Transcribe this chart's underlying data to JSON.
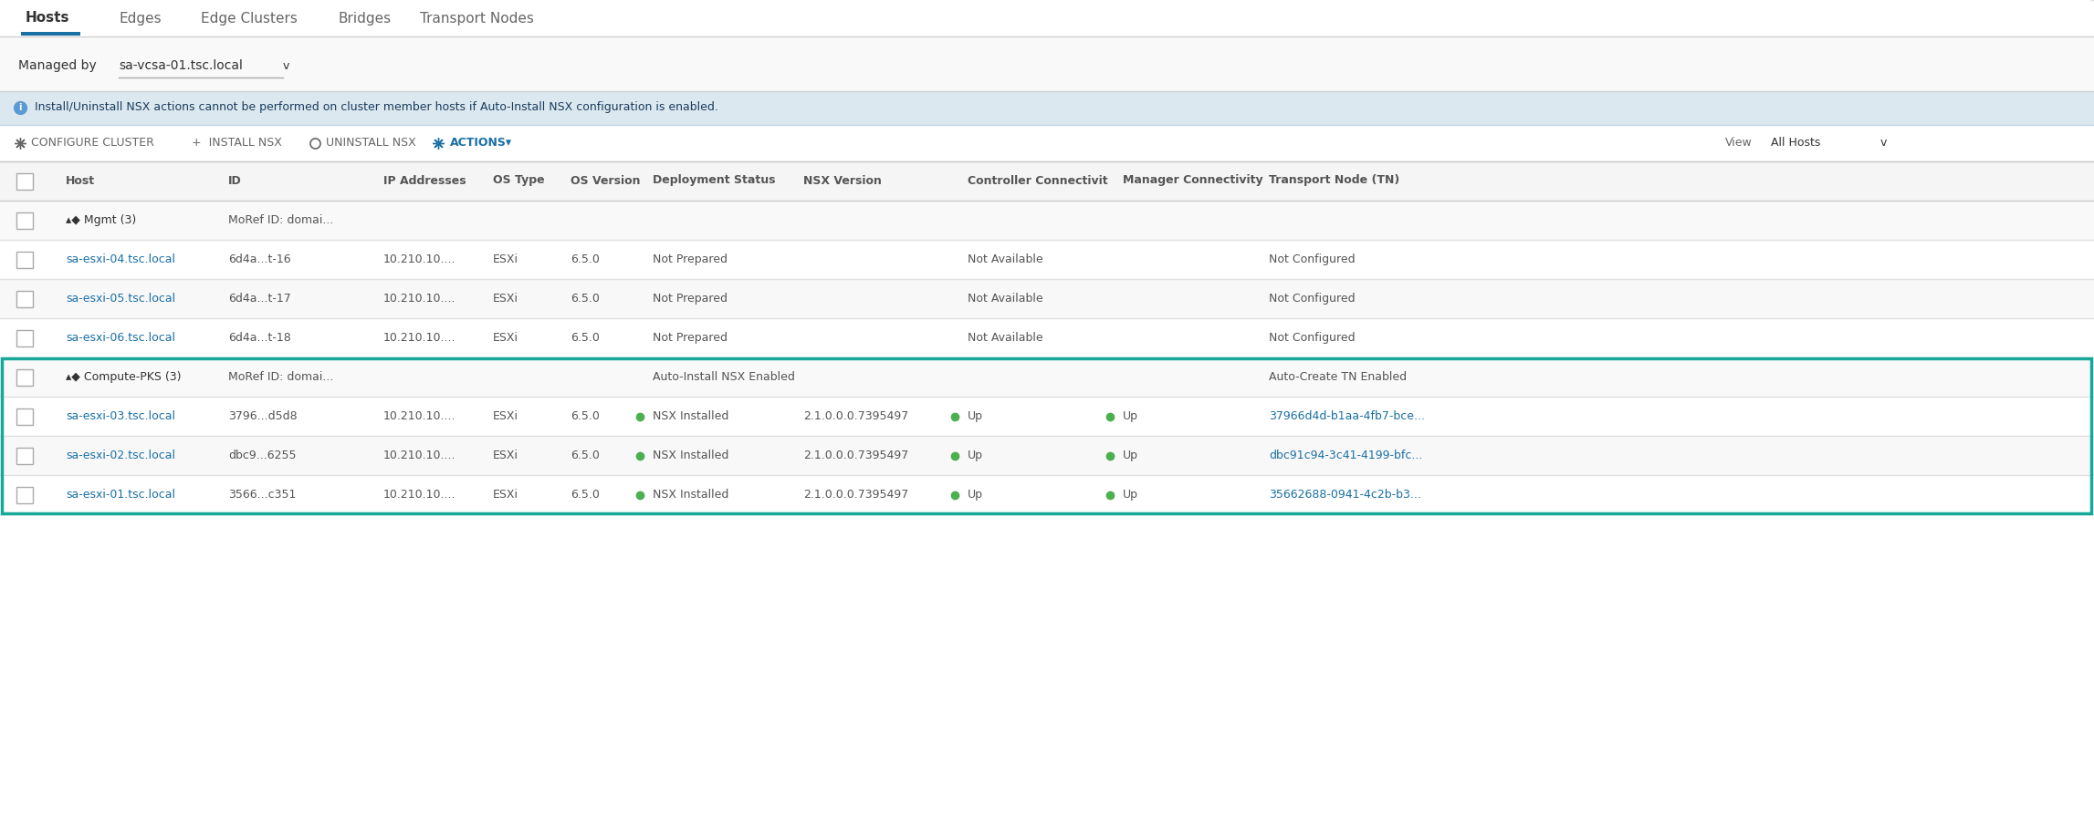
{
  "bg_color": "#ffffff",
  "tabs": [
    "Hosts",
    "Edges",
    "Edge Clusters",
    "Bridges",
    "Transport Nodes"
  ],
  "active_tab": "Hosts",
  "active_tab_color": "#1a6fa5",
  "managed_by_label": "Managed by",
  "managed_by_value": "sa-vcsa-01.tsc.local",
  "info_banner_bg": "#dce8f0",
  "info_banner_text": "Install/Uninstall NSX actions cannot be performed on cluster member hosts if Auto-Install NSX configuration is enabled.",
  "columns": [
    "Host",
    "ID",
    "IP Addresses",
    "OS Type",
    "OS Version",
    "Deployment Status",
    "NSX Version",
    "Controller Connectivit",
    "Manager Connectivity",
    "Transport Node (TN)"
  ],
  "header_bg": "#f5f5f5",
  "header_text_color": "#555555",
  "row_divider_color": "#e0e0e0",
  "mgmt_group_label": "▴◆ Mgmt (3)",
  "mgmt_group_id": "MoRef ID: domai...",
  "mgmt_rows": [
    {
      "host": "sa-esxi-04.tsc.local",
      "id": "6d4a...t-16",
      "ip": "10.210.10....",
      "os_type": "ESXi",
      "os_version": "6.5.0",
      "dep_status": "Not Prepared",
      "nsx_ver": "",
      "ctrl": "Not Available",
      "mgr": "",
      "tn": "Not Configured"
    },
    {
      "host": "sa-esxi-05.tsc.local",
      "id": "6d4a...t-17",
      "ip": "10.210.10....",
      "os_type": "ESXi",
      "os_version": "6.5.0",
      "dep_status": "Not Prepared",
      "nsx_ver": "",
      "ctrl": "Not Available",
      "mgr": "",
      "tn": "Not Configured"
    },
    {
      "host": "sa-esxi-06.tsc.local",
      "id": "6d4a...t-18",
      "ip": "10.210.10....",
      "os_type": "ESXi",
      "os_version": "6.5.0",
      "dep_status": "Not Prepared",
      "nsx_ver": "",
      "ctrl": "Not Available",
      "mgr": "",
      "tn": "Not Configured"
    }
  ],
  "compute_group_label": "▴◆ Compute-PKS (3)",
  "compute_group_id": "MoRef ID: domai...",
  "compute_group_dep": "Auto-Install NSX Enabled",
  "compute_group_tn": "Auto-Create TN Enabled",
  "compute_border_color": "#17a89a",
  "compute_rows": [
    {
      "host": "sa-esxi-03.tsc.local",
      "id": "3796...d5d8",
      "ip": "10.210.10....",
      "os_type": "ESXi",
      "os_version": "6.5.0",
      "dep_status": "NSX Installed",
      "nsx_ver": "2.1.0.0.0.7395497",
      "ctrl": "Up",
      "mgr": "Up",
      "tn": "37966d4d-b1aa-4fb7-bce..."
    },
    {
      "host": "sa-esxi-02.tsc.local",
      "id": "dbc9...6255",
      "ip": "10.210.10....",
      "os_type": "ESXi",
      "os_version": "6.5.0",
      "dep_status": "NSX Installed",
      "nsx_ver": "2.1.0.0.0.7395497",
      "ctrl": "Up",
      "mgr": "Up",
      "tn": "dbc91c94-3c41-4199-bfc..."
    },
    {
      "host": "sa-esxi-01.tsc.local",
      "id": "3566...c351",
      "ip": "10.210.10....",
      "os_type": "ESXi",
      "os_version": "6.5.0",
      "dep_status": "NSX Installed",
      "nsx_ver": "2.1.0.0.0.7395497",
      "ctrl": "Up",
      "mgr": "Up",
      "tn": "35662688-0941-4c2b-b3..."
    }
  ],
  "link_color": "#1a6fa5",
  "green_color": "#4caf50",
  "gray_text": "#666666",
  "dark_text": "#333333",
  "medium_text": "#555555"
}
